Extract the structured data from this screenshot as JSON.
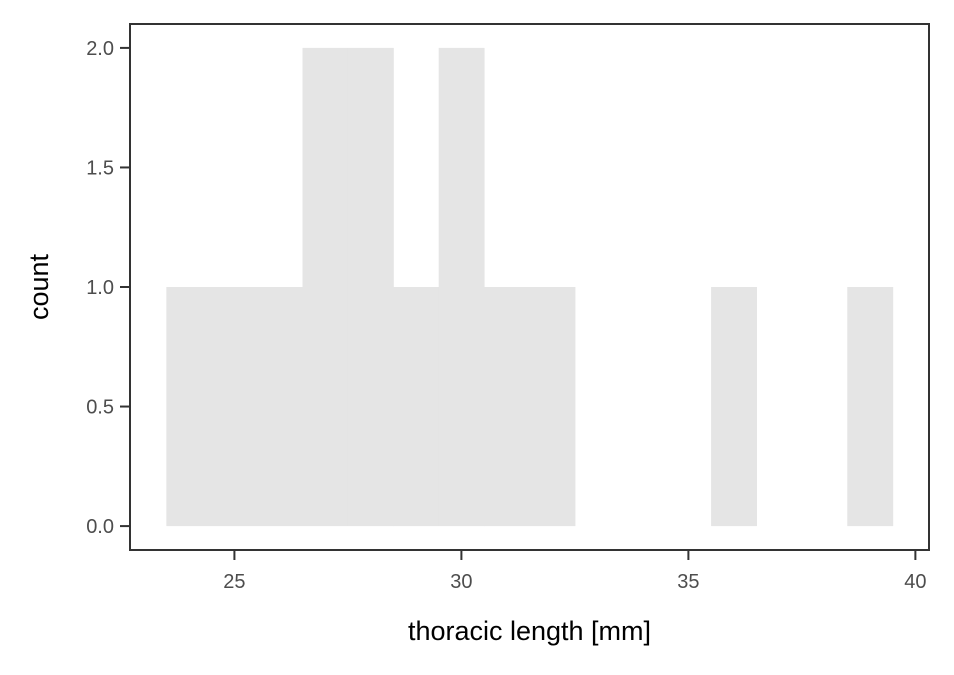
{
  "chart_data": {
    "type": "bar",
    "title": "",
    "xlabel": "thoracic length [mm]",
    "ylabel": "count",
    "bin_width": 1,
    "bins": [
      {
        "x0": 23.5,
        "x1": 24.5,
        "count": 1
      },
      {
        "x0": 24.5,
        "x1": 25.5,
        "count": 1
      },
      {
        "x0": 25.5,
        "x1": 26.5,
        "count": 1
      },
      {
        "x0": 26.5,
        "x1": 27.5,
        "count": 2
      },
      {
        "x0": 27.5,
        "x1": 28.5,
        "count": 2
      },
      {
        "x0": 28.5,
        "x1": 29.5,
        "count": 1
      },
      {
        "x0": 29.5,
        "x1": 30.5,
        "count": 2
      },
      {
        "x0": 30.5,
        "x1": 31.5,
        "count": 1
      },
      {
        "x0": 31.5,
        "x1": 32.5,
        "count": 1
      },
      {
        "x0": 35.5,
        "x1": 36.5,
        "count": 1
      },
      {
        "x0": 38.5,
        "x1": 39.5,
        "count": 1
      }
    ],
    "xlim": [
      22.7,
      40.3
    ],
    "ylim": [
      -0.1,
      2.1
    ],
    "xticks": [
      25,
      30,
      35,
      40
    ],
    "yticks": [
      0,
      0.5,
      1,
      1.5,
      2
    ],
    "xtick_labels": [
      "25",
      "30",
      "35",
      "40"
    ],
    "ytick_labels": [
      "0.0",
      "0.5",
      "1.0",
      "1.5",
      "2.0"
    ],
    "grid": false,
    "bar_color": "#e5e5e5"
  }
}
